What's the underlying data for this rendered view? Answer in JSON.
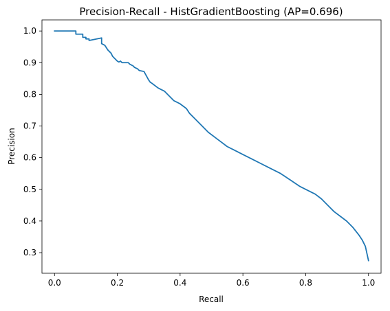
{
  "chart_data": {
    "type": "line",
    "title": "Precision-Recall - HistGradientBoosting (AP=0.696)",
    "xlabel": "Recall",
    "ylabel": "Precision",
    "xlim": [
      -0.04,
      1.04
    ],
    "ylim": [
      0.235,
      1.035
    ],
    "xticks": [
      0.0,
      0.2,
      0.4,
      0.6,
      0.8,
      1.0
    ],
    "xtick_labels": [
      "0.0",
      "0.2",
      "0.4",
      "0.6",
      "0.8",
      "1.0"
    ],
    "yticks": [
      0.3,
      0.4,
      0.5,
      0.6,
      0.7,
      0.8,
      0.9,
      1.0
    ],
    "ytick_labels": [
      "0.3",
      "0.4",
      "0.5",
      "0.6",
      "0.7",
      "0.8",
      "0.9",
      "1.0"
    ],
    "grid": false,
    "legend": false,
    "series_color": "#1f77b4",
    "series": [
      {
        "x": [
          0.0,
          0.068,
          0.068,
          0.09,
          0.09,
          0.1,
          0.1,
          0.11,
          0.11,
          0.15,
          0.15,
          0.16,
          0.17,
          0.18,
          0.185,
          0.19,
          0.2,
          0.205,
          0.21,
          0.215,
          0.22,
          0.235,
          0.24,
          0.25,
          0.255,
          0.265,
          0.27,
          0.285,
          0.3,
          0.305,
          0.31,
          0.33,
          0.35,
          0.36,
          0.37,
          0.38,
          0.4,
          0.42,
          0.43,
          0.45,
          0.47,
          0.49,
          0.51,
          0.53,
          0.55,
          0.57,
          0.6,
          0.63,
          0.66,
          0.69,
          0.72,
          0.75,
          0.78,
          0.8,
          0.83,
          0.85,
          0.87,
          0.89,
          0.91,
          0.93,
          0.95,
          0.97,
          0.98,
          0.99,
          1.0
        ],
        "y": [
          1.0,
          1.0,
          0.99,
          0.99,
          0.98,
          0.98,
          0.975,
          0.975,
          0.97,
          0.978,
          0.96,
          0.955,
          0.94,
          0.93,
          0.92,
          0.915,
          0.905,
          0.902,
          0.905,
          0.9,
          0.9,
          0.9,
          0.895,
          0.89,
          0.885,
          0.88,
          0.875,
          0.872,
          0.845,
          0.838,
          0.835,
          0.82,
          0.81,
          0.8,
          0.79,
          0.78,
          0.77,
          0.755,
          0.74,
          0.72,
          0.7,
          0.68,
          0.665,
          0.65,
          0.635,
          0.625,
          0.61,
          0.595,
          0.58,
          0.565,
          0.55,
          0.53,
          0.51,
          0.5,
          0.485,
          0.47,
          0.45,
          0.43,
          0.415,
          0.4,
          0.38,
          0.355,
          0.34,
          0.32,
          0.275
        ]
      }
    ]
  }
}
